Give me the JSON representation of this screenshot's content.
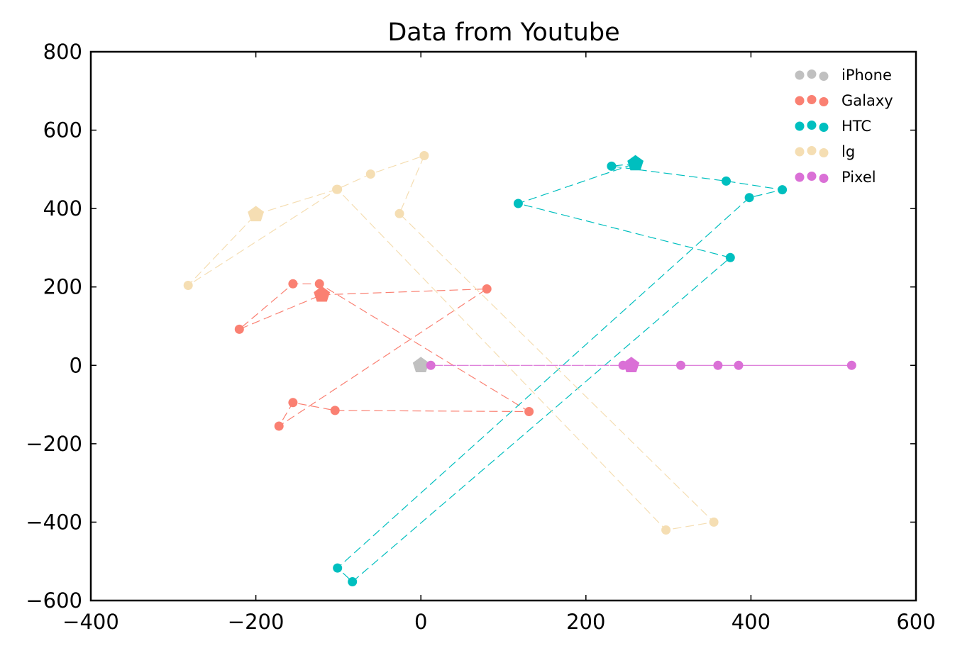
{
  "chart_data": {
    "type": "scatter",
    "title": "Data from Youtube",
    "xlabel": "",
    "ylabel": "",
    "xlim": [
      -400,
      600
    ],
    "ylim": [
      -600,
      800
    ],
    "xticks": [
      -400,
      -200,
      0,
      200,
      400,
      600
    ],
    "yticks": [
      -600,
      -400,
      -200,
      0,
      200,
      400,
      600,
      800
    ],
    "xtick_labels": [
      "−400",
      "−200",
      "0",
      "200",
      "400",
      "600"
    ],
    "ytick_labels": [
      "−600",
      "−400",
      "−200",
      "0",
      "200",
      "400",
      "600",
      "800"
    ],
    "grid": false,
    "legend_position": "top-right",
    "series": [
      {
        "name": "iPhone",
        "color": "#c0c0c0",
        "center": [
          0,
          0
        ],
        "points": []
      },
      {
        "name": "Galaxy",
        "color": "#fa8072",
        "center": [
          -120,
          180
        ],
        "points": [
          [
            -120,
            180
          ],
          [
            80,
            195
          ],
          [
            -172,
            -155
          ],
          [
            -155,
            -95
          ],
          [
            -104,
            -115
          ],
          [
            131,
            -118
          ],
          [
            -123,
            208
          ],
          [
            -155,
            208
          ],
          [
            -220,
            92
          ],
          [
            -120,
            180
          ]
        ]
      },
      {
        "name": "HTC",
        "color": "#00bfbf",
        "center": [
          260,
          515
        ],
        "points": [
          [
            260,
            515
          ],
          [
            231,
            508
          ],
          [
            370,
            470
          ],
          [
            438,
            448
          ],
          [
            398,
            428
          ],
          [
            -101,
            -517
          ],
          [
            -83,
            -552
          ],
          [
            375,
            275
          ],
          [
            118,
            413
          ],
          [
            260,
            515
          ]
        ]
      },
      {
        "name": "lg",
        "color": "#f5deb3",
        "center": [
          -200,
          385
        ],
        "points": [
          [
            -200,
            385
          ],
          [
            -102,
            449
          ],
          [
            -61,
            488
          ],
          [
            4,
            535
          ],
          [
            -26,
            387
          ],
          [
            355,
            -400
          ],
          [
            297,
            -420
          ],
          [
            -101,
            449
          ],
          [
            -282,
            204
          ],
          [
            -200,
            385
          ]
        ]
      },
      {
        "name": "Pixel",
        "color": "#da70d6",
        "center": [
          255,
          0
        ],
        "points": [
          [
            255,
            0
          ],
          [
            12,
            0
          ],
          [
            245,
            0
          ],
          [
            315,
            0
          ],
          [
            360,
            0
          ],
          [
            385,
            0
          ],
          [
            522,
            0
          ],
          [
            255,
            0
          ]
        ]
      }
    ]
  }
}
